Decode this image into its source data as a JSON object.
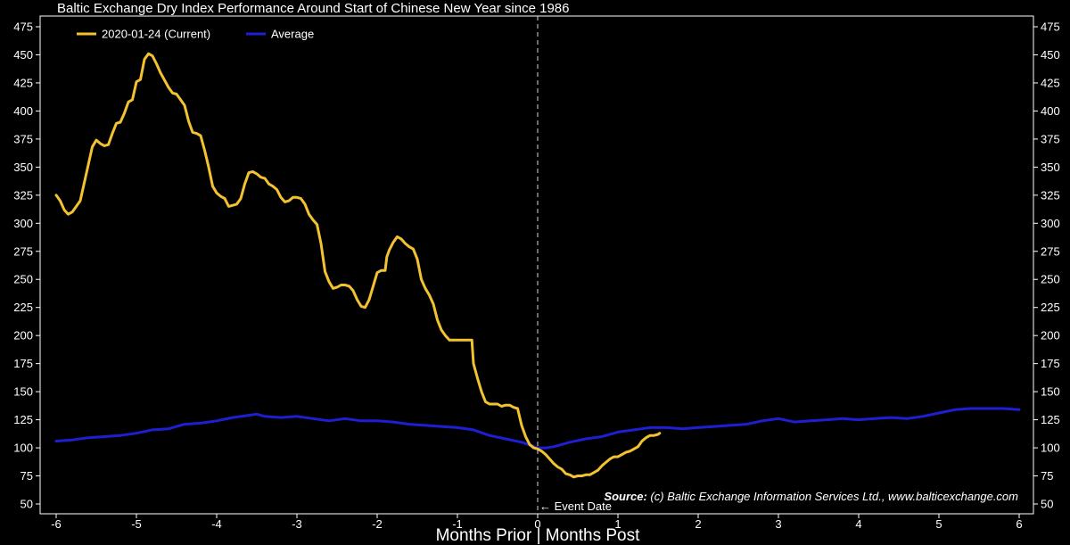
{
  "chart_data": {
    "type": "line",
    "title": "Baltic Exchange Dry Index Performance Around Start of Chinese New Year since 1986",
    "xlabel": "Months Prior | Months Post",
    "ylabel": "",
    "xlim": [
      -6,
      6
    ],
    "ylim": [
      40,
      480
    ],
    "x_ticks": [
      -6,
      -5,
      -4,
      -3,
      -2,
      -1,
      0,
      1,
      2,
      3,
      4,
      5,
      6
    ],
    "y_ticks": [
      50,
      75,
      100,
      125,
      150,
      175,
      200,
      225,
      250,
      275,
      300,
      325,
      350,
      375,
      400,
      425,
      450,
      475
    ],
    "legend_position": "top-left",
    "series": [
      {
        "name": "2020-01-24 (Current)",
        "color": "#F2C230",
        "points": [
          [
            -6.0,
            325
          ],
          [
            -5.95,
            320
          ],
          [
            -5.9,
            312
          ],
          [
            -5.85,
            308
          ],
          [
            -5.8,
            310
          ],
          [
            -5.7,
            320
          ],
          [
            -5.6,
            352
          ],
          [
            -5.55,
            368
          ],
          [
            -5.5,
            374
          ],
          [
            -5.45,
            371
          ],
          [
            -5.4,
            369
          ],
          [
            -5.35,
            370
          ],
          [
            -5.3,
            380
          ],
          [
            -5.25,
            389
          ],
          [
            -5.2,
            390
          ],
          [
            -5.15,
            398
          ],
          [
            -5.1,
            408
          ],
          [
            -5.05,
            410
          ],
          [
            -5.0,
            426
          ],
          [
            -4.95,
            428
          ],
          [
            -4.9,
            446
          ],
          [
            -4.85,
            451
          ],
          [
            -4.8,
            449
          ],
          [
            -4.75,
            442
          ],
          [
            -4.7,
            434
          ],
          [
            -4.6,
            421
          ],
          [
            -4.55,
            416
          ],
          [
            -4.5,
            415
          ],
          [
            -4.45,
            410
          ],
          [
            -4.4,
            405
          ],
          [
            -4.35,
            391
          ],
          [
            -4.3,
            381
          ],
          [
            -4.25,
            380
          ],
          [
            -4.2,
            378
          ],
          [
            -4.15,
            365
          ],
          [
            -4.1,
            350
          ],
          [
            -4.05,
            333
          ],
          [
            -4.0,
            327
          ],
          [
            -3.95,
            324
          ],
          [
            -3.9,
            322
          ],
          [
            -3.85,
            315
          ],
          [
            -3.8,
            316
          ],
          [
            -3.75,
            317
          ],
          [
            -3.7,
            322
          ],
          [
            -3.65,
            335
          ],
          [
            -3.6,
            345
          ],
          [
            -3.55,
            346
          ],
          [
            -3.5,
            344
          ],
          [
            -3.45,
            341
          ],
          [
            -3.4,
            340
          ],
          [
            -3.35,
            335
          ],
          [
            -3.3,
            333
          ],
          [
            -3.25,
            330
          ],
          [
            -3.2,
            323
          ],
          [
            -3.15,
            319
          ],
          [
            -3.1,
            320
          ],
          [
            -3.05,
            323
          ],
          [
            -3.0,
            323
          ],
          [
            -2.95,
            322
          ],
          [
            -2.9,
            317
          ],
          [
            -2.85,
            308
          ],
          [
            -2.8,
            303
          ],
          [
            -2.75,
            299
          ],
          [
            -2.7,
            282
          ],
          [
            -2.65,
            257
          ],
          [
            -2.6,
            248
          ],
          [
            -2.55,
            242
          ],
          [
            -2.5,
            243
          ],
          [
            -2.45,
            245
          ],
          [
            -2.4,
            245
          ],
          [
            -2.35,
            244
          ],
          [
            -2.3,
            240
          ],
          [
            -2.25,
            232
          ],
          [
            -2.2,
            226
          ],
          [
            -2.15,
            225
          ],
          [
            -2.1,
            232
          ],
          [
            -2.05,
            244
          ],
          [
            -2.0,
            256
          ],
          [
            -1.95,
            258
          ],
          [
            -1.9,
            258
          ],
          [
            -1.88,
            270
          ],
          [
            -1.85,
            276
          ],
          [
            -1.8,
            283
          ],
          [
            -1.75,
            288
          ],
          [
            -1.7,
            286
          ],
          [
            -1.65,
            282
          ],
          [
            -1.6,
            279
          ],
          [
            -1.55,
            277
          ],
          [
            -1.5,
            268
          ],
          [
            -1.45,
            250
          ],
          [
            -1.4,
            242
          ],
          [
            -1.35,
            236
          ],
          [
            -1.3,
            228
          ],
          [
            -1.25,
            214
          ],
          [
            -1.2,
            205
          ],
          [
            -1.15,
            200
          ],
          [
            -1.1,
            196
          ],
          [
            -1.05,
            196
          ],
          [
            -1.0,
            196
          ],
          [
            -0.95,
            196
          ],
          [
            -0.9,
            196
          ],
          [
            -0.82,
            196
          ],
          [
            -0.8,
            175
          ],
          [
            -0.75,
            162
          ],
          [
            -0.7,
            150
          ],
          [
            -0.65,
            141
          ],
          [
            -0.6,
            139
          ],
          [
            -0.55,
            139
          ],
          [
            -0.5,
            139
          ],
          [
            -0.45,
            137
          ],
          [
            -0.4,
            138
          ],
          [
            -0.35,
            138
          ],
          [
            -0.3,
            136
          ],
          [
            -0.25,
            135
          ],
          [
            -0.2,
            120
          ],
          [
            -0.15,
            110
          ],
          [
            -0.1,
            103
          ],
          [
            -0.05,
            100
          ],
          [
            0.0,
            99
          ],
          [
            0.05,
            97
          ],
          [
            0.1,
            94
          ],
          [
            0.15,
            90
          ],
          [
            0.2,
            86
          ],
          [
            0.25,
            83
          ],
          [
            0.3,
            81
          ],
          [
            0.35,
            77
          ],
          [
            0.4,
            76
          ],
          [
            0.45,
            74
          ],
          [
            0.5,
            75
          ],
          [
            0.55,
            75
          ],
          [
            0.6,
            76
          ],
          [
            0.65,
            76
          ],
          [
            0.7,
            78
          ],
          [
            0.75,
            80
          ],
          [
            0.8,
            84
          ],
          [
            0.85,
            87
          ],
          [
            0.9,
            90
          ],
          [
            0.95,
            92
          ],
          [
            1.0,
            92
          ],
          [
            1.05,
            94
          ],
          [
            1.1,
            96
          ],
          [
            1.15,
            97
          ],
          [
            1.2,
            99
          ],
          [
            1.25,
            101
          ],
          [
            1.3,
            106
          ],
          [
            1.35,
            109
          ],
          [
            1.4,
            111
          ],
          [
            1.45,
            111
          ],
          [
            1.5,
            112
          ],
          [
            1.52,
            113
          ]
        ]
      },
      {
        "name": "Average",
        "color": "#1E1ED2",
        "points": [
          [
            -6.0,
            106
          ],
          [
            -5.8,
            107
          ],
          [
            -5.6,
            109
          ],
          [
            -5.4,
            110
          ],
          [
            -5.2,
            111
          ],
          [
            -5.0,
            113
          ],
          [
            -4.8,
            116
          ],
          [
            -4.6,
            117
          ],
          [
            -4.4,
            121
          ],
          [
            -4.2,
            122
          ],
          [
            -4.0,
            124
          ],
          [
            -3.8,
            127
          ],
          [
            -3.6,
            129
          ],
          [
            -3.5,
            130
          ],
          [
            -3.4,
            128
          ],
          [
            -3.2,
            127
          ],
          [
            -3.0,
            128
          ],
          [
            -2.8,
            126
          ],
          [
            -2.6,
            124
          ],
          [
            -2.4,
            126
          ],
          [
            -2.2,
            124
          ],
          [
            -2.0,
            124
          ],
          [
            -1.8,
            123
          ],
          [
            -1.6,
            121
          ],
          [
            -1.4,
            120
          ],
          [
            -1.2,
            119
          ],
          [
            -1.0,
            118
          ],
          [
            -0.8,
            116
          ],
          [
            -0.6,
            111
          ],
          [
            -0.4,
            108
          ],
          [
            -0.2,
            105
          ],
          [
            0.0,
            100
          ],
          [
            0.1,
            100
          ],
          [
            0.2,
            101
          ],
          [
            0.4,
            105
          ],
          [
            0.6,
            108
          ],
          [
            0.8,
            110
          ],
          [
            1.0,
            114
          ],
          [
            1.2,
            116
          ],
          [
            1.4,
            118
          ],
          [
            1.6,
            118
          ],
          [
            1.8,
            117
          ],
          [
            2.0,
            118
          ],
          [
            2.2,
            119
          ],
          [
            2.4,
            120
          ],
          [
            2.6,
            121
          ],
          [
            2.8,
            124
          ],
          [
            3.0,
            126
          ],
          [
            3.2,
            123
          ],
          [
            3.4,
            124
          ],
          [
            3.6,
            125
          ],
          [
            3.8,
            126
          ],
          [
            4.0,
            125
          ],
          [
            4.2,
            126
          ],
          [
            4.4,
            127
          ],
          [
            4.6,
            126
          ],
          [
            4.8,
            128
          ],
          [
            5.0,
            131
          ],
          [
            5.2,
            134
          ],
          [
            5.4,
            135
          ],
          [
            5.6,
            135
          ],
          [
            5.8,
            135
          ],
          [
            6.0,
            134
          ]
        ]
      }
    ],
    "event_line": {
      "x": 0,
      "label": "Event Date"
    },
    "source": {
      "label": "Source:",
      "text": "(c) Baltic Exchange Information Services Ltd., www.balticexchange.com"
    }
  }
}
